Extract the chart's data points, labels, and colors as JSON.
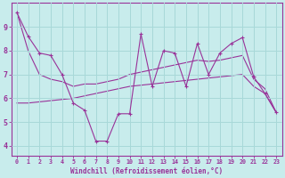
{
  "xlabel": "Windchill (Refroidissement éolien,°C)",
  "background_color": "#c8ecec",
  "grid_color": "#a8d8d8",
  "line_color": "#993399",
  "xlim": [
    -0.5,
    23.5
  ],
  "ylim": [
    3.6,
    10.0
  ],
  "yticks": [
    4,
    5,
    6,
    7,
    8,
    9
  ],
  "xticks": [
    0,
    1,
    2,
    3,
    4,
    5,
    6,
    7,
    8,
    9,
    10,
    11,
    12,
    13,
    14,
    15,
    16,
    17,
    18,
    19,
    20,
    21,
    22,
    23
  ],
  "main_data": [
    9.6,
    8.6,
    7.9,
    7.8,
    7.0,
    5.8,
    5.5,
    4.2,
    4.2,
    5.35,
    5.35,
    8.7,
    6.5,
    8.0,
    7.9,
    6.5,
    8.3,
    7.0,
    7.9,
    8.3,
    8.55,
    6.9,
    6.2,
    5.4
  ],
  "smooth_data": [
    5.8,
    5.8,
    5.85,
    5.9,
    5.95,
    6.0,
    6.1,
    6.2,
    6.3,
    6.4,
    6.5,
    6.55,
    6.6,
    6.65,
    6.7,
    6.75,
    6.8,
    6.85,
    6.9,
    6.95,
    7.0,
    6.5,
    6.2,
    5.4
  ],
  "trend_data": [
    9.6,
    8.0,
    7.0,
    6.8,
    6.7,
    6.5,
    6.6,
    6.6,
    6.7,
    6.8,
    7.0,
    7.1,
    7.2,
    7.3,
    7.4,
    7.5,
    7.6,
    7.55,
    7.6,
    7.7,
    7.8,
    6.8,
    6.4,
    5.4
  ],
  "marker": "+"
}
